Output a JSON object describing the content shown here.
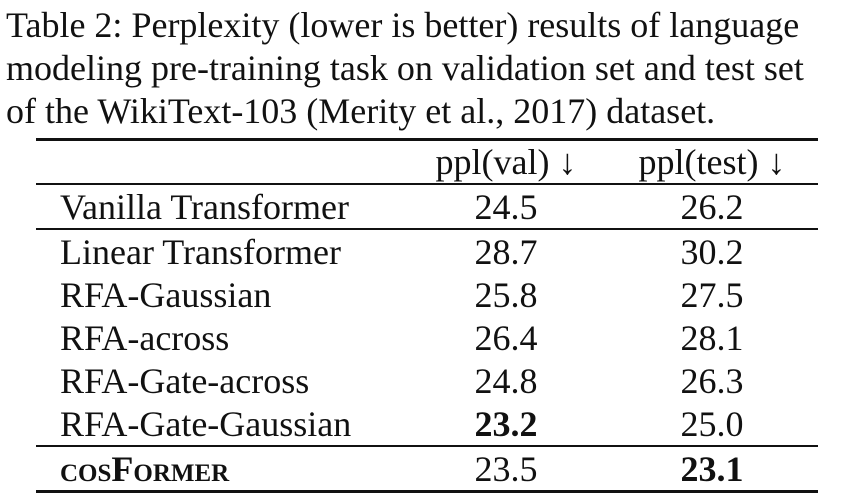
{
  "caption": {
    "line1": "Table 2: Perplexity (lower is better) results of language",
    "line2": "modeling pre-training task on validation set and test set",
    "line3": "of the WikiText-103 (Merity et al., 2017) dataset."
  },
  "table": {
    "headers": [
      "",
      "ppl(val) ↓",
      "ppl(test) ↓"
    ],
    "baseline": {
      "model": "Vanilla Transformer",
      "val": "24.5",
      "test": "26.2"
    },
    "rows": [
      {
        "model": "Linear Transformer",
        "val": "28.7",
        "test": "30.2"
      },
      {
        "model": "RFA-Gaussian",
        "val": "25.8",
        "test": "27.5"
      },
      {
        "model": "RFA-across",
        "val": "26.4",
        "test": "28.1"
      },
      {
        "model": "RFA-Gate-across",
        "val": "24.8",
        "test": "26.3"
      },
      {
        "model": "RFA-Gate-Gaussian",
        "val": "23.2",
        "test": "25.0"
      }
    ],
    "ours": {
      "model": "cosFormer",
      "val": "23.5",
      "test": "23.1"
    }
  }
}
